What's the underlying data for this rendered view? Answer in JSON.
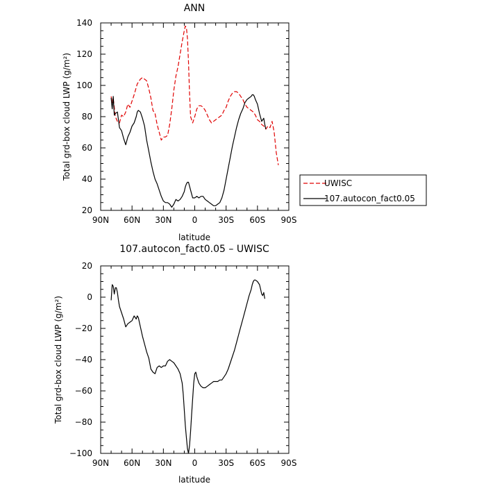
{
  "chart_data": [
    {
      "type": "line",
      "title": "ANN",
      "xlabel": "latitude",
      "ylabel": "Total grd-box cloud LWP (g/m²)",
      "xlim": [
        90,
        -90
      ],
      "ylim": [
        20,
        140
      ],
      "xticks": [
        90,
        60,
        30,
        0,
        -30,
        -60,
        -90
      ],
      "xticklabels": [
        "90N",
        "60N",
        "30N",
        "0",
        "30S",
        "60S",
        "90S"
      ],
      "yticks": [
        20,
        40,
        60,
        80,
        100,
        120,
        140
      ],
      "legend": "right-outside",
      "series": [
        {
          "name": "UWISC",
          "color": "#e00000",
          "dash": "dashed",
          "x": [
            80,
            79,
            78,
            76,
            74,
            72,
            70,
            68,
            66,
            64,
            62,
            60,
            58,
            55,
            52,
            50,
            48,
            46,
            44,
            42,
            40,
            38,
            36,
            34,
            32,
            30,
            28,
            26,
            24,
            22,
            20,
            18,
            16,
            14,
            12,
            10,
            9,
            8,
            7,
            6,
            5,
            4,
            2,
            0,
            -2,
            -4,
            -6,
            -8,
            -10,
            -12,
            -14,
            -16,
            -18,
            -20,
            -22,
            -24,
            -26,
            -28,
            -30,
            -32,
            -34,
            -36,
            -38,
            -40,
            -42,
            -44,
            -46,
            -48,
            -50,
            -52,
            -54,
            -56,
            -58,
            -60,
            -62,
            -64,
            -66,
            -68,
            -70,
            -72,
            -74,
            -76,
            -78,
            -80
          ],
          "y": [
            93,
            89,
            92,
            80,
            77,
            76,
            81,
            80,
            83,
            88,
            86,
            90,
            94,
            101,
            104,
            105,
            104,
            103,
            98,
            92,
            84,
            82,
            75,
            70,
            65,
            67,
            67,
            68,
            75,
            85,
            97,
            106,
            112,
            120,
            128,
            135,
            138,
            137,
            130,
            115,
            95,
            80,
            76,
            80,
            85,
            87,
            87,
            86,
            84,
            81,
            78,
            76,
            77,
            78,
            79,
            80,
            81,
            84,
            86,
            90,
            93,
            95,
            96,
            96,
            95,
            93,
            91,
            88,
            86,
            85,
            84,
            83,
            81,
            78,
            77,
            75,
            74,
            72,
            74,
            73,
            77,
            70,
            57,
            49
          ]
        },
        {
          "name": "107.autocon_fact0.05",
          "color": "#000000",
          "dash": "solid",
          "x": [
            80,
            79,
            78,
            77,
            76,
            74,
            72,
            70,
            68,
            66,
            64,
            62,
            60,
            58,
            56,
            55,
            54,
            52,
            50,
            48,
            46,
            44,
            42,
            40,
            38,
            36,
            34,
            32,
            30,
            28,
            26,
            24,
            22,
            20,
            18,
            16,
            14,
            12,
            10,
            9,
            8,
            7,
            6,
            4,
            2,
            0,
            -2,
            -4,
            -6,
            -8,
            -10,
            -12,
            -14,
            -16,
            -18,
            -20,
            -22,
            -24,
            -26,
            -28,
            -30,
            -32,
            -34,
            -36,
            -38,
            -40,
            -42,
            -44,
            -46,
            -48,
            -50,
            -52,
            -54,
            -55,
            -56,
            -57,
            -58,
            -60,
            -62,
            -64,
            -65,
            -66,
            -67,
            -68
          ],
          "y": [
            92,
            85,
            93,
            81,
            82,
            83,
            73,
            71,
            66,
            62,
            67,
            70,
            74,
            76,
            80,
            83,
            84,
            83,
            79,
            74,
            65,
            58,
            51,
            45,
            40,
            37,
            33,
            29,
            26,
            25,
            25,
            24,
            22,
            24,
            27,
            26,
            27,
            29,
            32,
            35,
            37,
            38,
            38,
            33,
            28,
            28,
            29,
            28,
            29,
            29,
            27,
            26,
            25,
            24,
            23,
            23,
            24,
            25,
            28,
            33,
            40,
            47,
            54,
            61,
            67,
            73,
            78,
            82,
            85,
            89,
            91,
            92,
            93,
            94,
            94,
            93,
            91,
            88,
            82,
            77,
            78,
            79,
            75,
            72
          ]
        }
      ]
    },
    {
      "type": "line",
      "title": "107.autocon_fact0.05 – UWISC",
      "xlabel": "latitude",
      "ylabel": "Total grd-box cloud LWP (g/m²)",
      "xlim": [
        90,
        -90
      ],
      "ylim": [
        -100,
        20
      ],
      "xticks": [
        90,
        60,
        30,
        0,
        -30,
        -60,
        -90
      ],
      "xticklabels": [
        "90N",
        "60N",
        "30N",
        "0",
        "30S",
        "60S",
        "90S"
      ],
      "yticks": [
        -100,
        -80,
        -60,
        -40,
        -20,
        0,
        20
      ],
      "series": [
        {
          "color": "#000000",
          "dash": "solid",
          "x": [
            80,
            79,
            78,
            77,
            76,
            75,
            74,
            73,
            72,
            70,
            68,
            66,
            64,
            62,
            60,
            58,
            56,
            55,
            54,
            52,
            50,
            48,
            46,
            44,
            42,
            40,
            38,
            36,
            34,
            32,
            30,
            28,
            26,
            24,
            22,
            20,
            18,
            16,
            14,
            12,
            11,
            10,
            9,
            8,
            7,
            6,
            5,
            4,
            3,
            2,
            1,
            0,
            -1,
            -2,
            -4,
            -6,
            -8,
            -10,
            -12,
            -14,
            -16,
            -18,
            -20,
            -22,
            -24,
            -26,
            -28,
            -30,
            -32,
            -34,
            -36,
            -38,
            -40,
            -42,
            -44,
            -46,
            -48,
            -50,
            -52,
            -54,
            -55,
            -56,
            -57,
            -58,
            -60,
            -62,
            -63,
            -64,
            -65,
            -66,
            -67
          ],
          "y": [
            -2,
            8,
            7,
            2,
            6,
            6,
            3,
            -2,
            -6,
            -10,
            -14,
            -19,
            -17,
            -16,
            -15,
            -12,
            -14,
            -12,
            -13,
            -19,
            -25,
            -30,
            -35,
            -39,
            -46,
            -48,
            -49,
            -45,
            -44,
            -45,
            -44,
            -44,
            -41,
            -40,
            -41,
            -42,
            -44,
            -46,
            -49,
            -55,
            -62,
            -72,
            -82,
            -90,
            -97,
            -100,
            -95,
            -86,
            -75,
            -65,
            -55,
            -49,
            -48,
            -51,
            -55,
            -57,
            -58,
            -58,
            -57,
            -56,
            -55,
            -54,
            -54,
            -54,
            -53,
            -53,
            -51,
            -49,
            -46,
            -42,
            -38,
            -34,
            -29,
            -24,
            -19,
            -14,
            -9,
            -4,
            1,
            5,
            8,
            10,
            11,
            11,
            10,
            8,
            5,
            2,
            1,
            3,
            -1
          ]
        }
      ]
    }
  ]
}
